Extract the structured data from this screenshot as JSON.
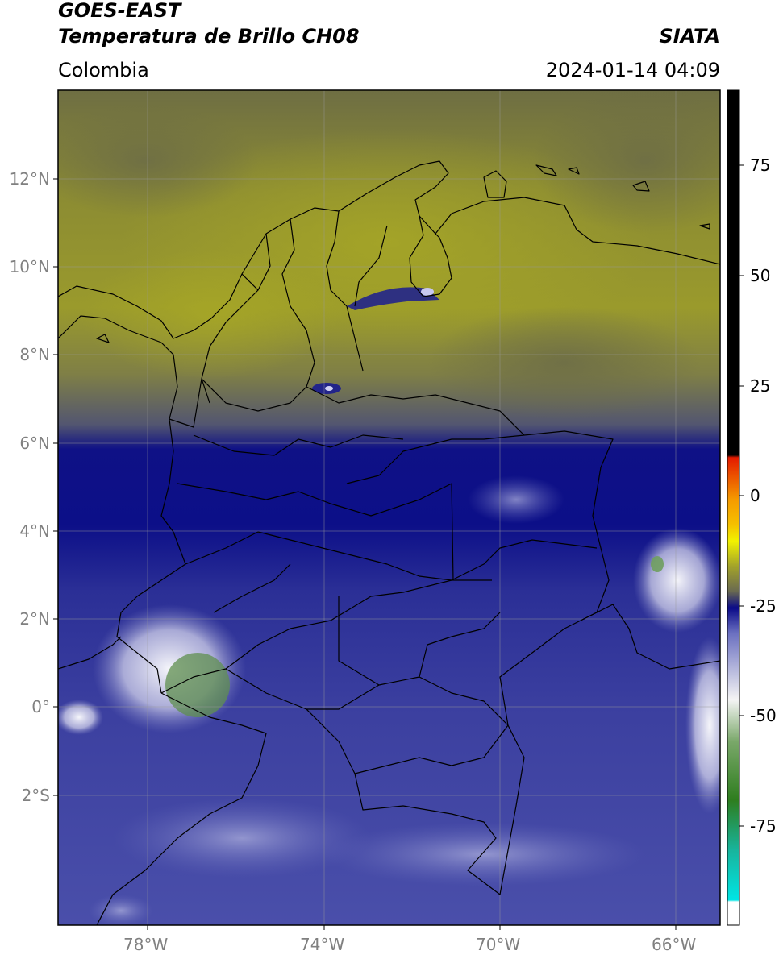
{
  "header": {
    "satellite": "GOES-EAST",
    "product": "Temperatura de Brillo CH08",
    "org": "SIATA",
    "region": "Colombia",
    "datetime": "2024-01-14 04:09"
  },
  "map": {
    "lat_labels": [
      "12°N",
      "10°N",
      "8°N",
      "6°N",
      "4°N",
      "2°N",
      "0°",
      "2°S"
    ],
    "lon_labels": [
      "78°W",
      "74°W",
      "70°W",
      "66°W"
    ],
    "lat_range": [
      -4,
      14
    ],
    "lon_range": [
      -80,
      -65
    ]
  },
  "colorbar": {
    "range": [
      -95,
      90
    ],
    "ticks": [
      "75",
      "50",
      "25",
      "0",
      "-25",
      "-50",
      "-75"
    ],
    "colors": {
      "warm_black": "#000000",
      "red": "#e41a00",
      "orange": "#f59a00",
      "yellow": "#f2f200",
      "olive": "#a3a32a",
      "gray": "#6a6a50",
      "navy": "#0a0a88",
      "slate_blue": "#4a4fa8",
      "white": "#f4f4f4",
      "green": "#2e7d1e",
      "teal": "#18b49c",
      "cyan": "#00e5e5"
    }
  }
}
